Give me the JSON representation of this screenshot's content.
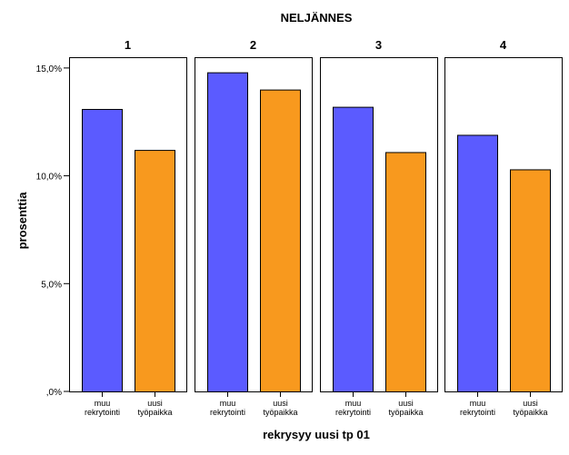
{
  "chart_data": {
    "type": "bar",
    "title": "NELJÄNNES",
    "xlabel": "rekrysyy uusi tp 01",
    "ylabel": "prosenttia",
    "ylim": [
      0,
      15.5
    ],
    "yticks": [
      {
        "value": 0,
        "label": ",0%"
      },
      {
        "value": 5,
        "label": "5,0%"
      },
      {
        "value": 10,
        "label": "10,0%"
      },
      {
        "value": 15,
        "label": "15,0%"
      }
    ],
    "categories": [
      [
        "muu",
        "rekrytointi"
      ],
      [
        "uusi",
        "työpaikka"
      ]
    ],
    "colors": [
      "#5b5bff",
      "#f8991e"
    ],
    "panels": [
      {
        "label": "1",
        "values": [
          13.1,
          11.2
        ]
      },
      {
        "label": "2",
        "values": [
          14.8,
          14.0
        ]
      },
      {
        "label": "3",
        "values": [
          13.2,
          11.1
        ]
      },
      {
        "label": "4",
        "values": [
          11.9,
          10.3
        ]
      }
    ],
    "grid": false,
    "legend": "none"
  }
}
